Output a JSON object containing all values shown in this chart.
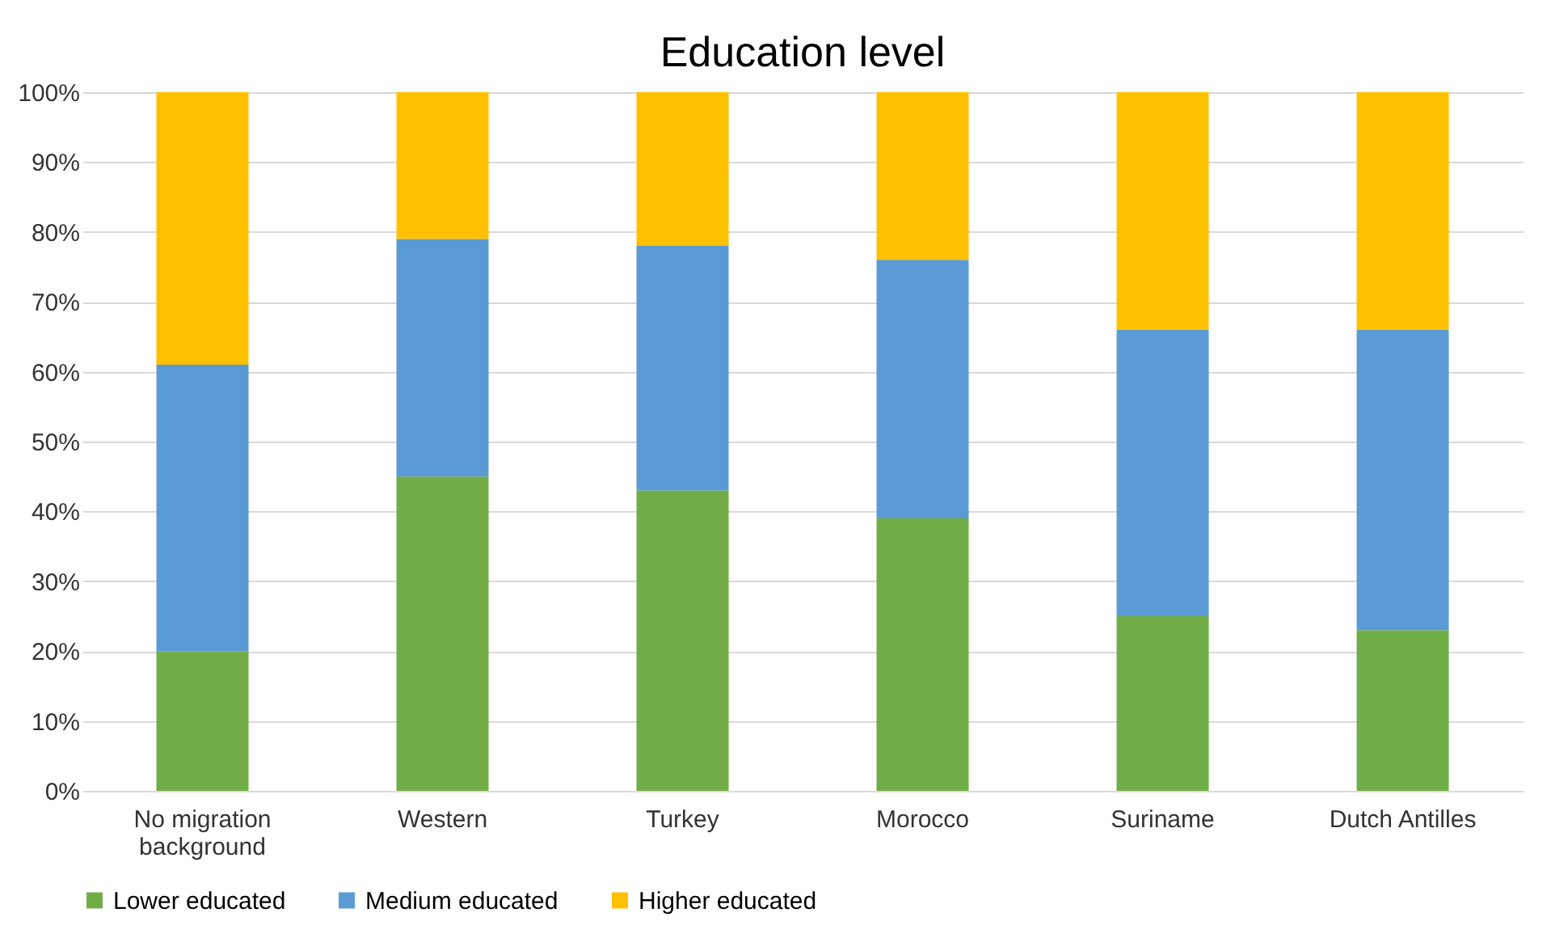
{
  "chart_data": {
    "type": "bar",
    "title": "Education level",
    "stacked": true,
    "categories": [
      "No migration background",
      "Western",
      "Turkey",
      "Morocco",
      "Suriname",
      "Dutch Antilles"
    ],
    "series": [
      {
        "name": "Lower educated",
        "color": "#70ad47",
        "values": [
          20,
          45,
          43,
          39,
          25,
          23
        ]
      },
      {
        "name": "Medium educated",
        "color": "#5b9bd5",
        "values": [
          41,
          34,
          35,
          37,
          41,
          43
        ]
      },
      {
        "name": "Higher educated",
        "color": "#ffc000",
        "values": [
          39,
          21,
          22,
          24,
          34,
          34
        ]
      }
    ],
    "ylim": [
      0,
      100
    ],
    "yticks": [
      {
        "value": 0,
        "label": "0%"
      },
      {
        "value": 10,
        "label": "10%"
      },
      {
        "value": 20,
        "label": "20%"
      },
      {
        "value": 30,
        "label": "30%"
      },
      {
        "value": 40,
        "label": "40%"
      },
      {
        "value": 50,
        "label": "50%"
      },
      {
        "value": 60,
        "label": "60%"
      },
      {
        "value": 70,
        "label": "70%"
      },
      {
        "value": 80,
        "label": "80%"
      },
      {
        "value": 90,
        "label": "90%"
      },
      {
        "value": 100,
        "label": "100%"
      }
    ],
    "grid": "y",
    "legend": "bottom"
  }
}
